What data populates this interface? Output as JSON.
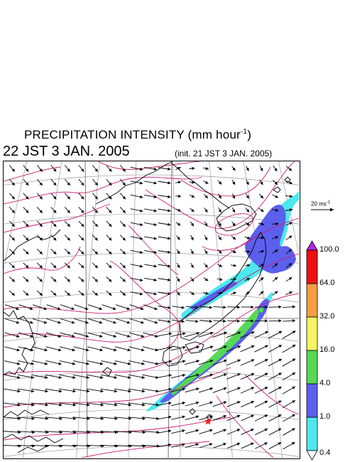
{
  "title": {
    "main": "PRECIPITATION INTENSITY (mm hour",
    "exponent": "-1",
    "close": ")"
  },
  "valid_time": "22 JST 3 JAN. 2005",
  "init_time": "(init. 21 JST 3 JAN. 2005)",
  "wind_reference": {
    "label": "20 ms",
    "exponent": "-1"
  },
  "colorbar": {
    "levels": [
      "0.4",
      "1.0",
      "4.0",
      "16.0",
      "32.0",
      "64.0",
      "100.0"
    ],
    "colors": [
      "#4de8ee",
      "#5b60ee",
      "#55d955",
      "#f5f563",
      "#f59e43",
      "#ee1111",
      "#b027e0"
    ],
    "under_color": "#ffffff"
  },
  "map_colors": {
    "contour": "#cc1f75",
    "grid": "#8a8a8a",
    "coast": "#000000",
    "marker": "#ff2020"
  },
  "marker_icon": "star-icon"
}
